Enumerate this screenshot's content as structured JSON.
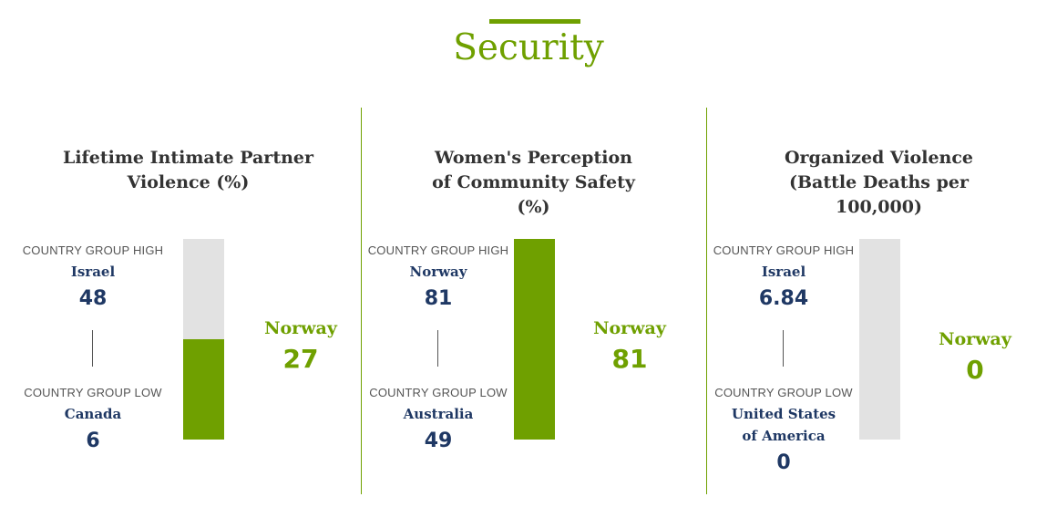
{
  "page": {
    "title": "Security",
    "accent_color": "#6fa000",
    "value_color": "#1f3864",
    "track_color": "#e2e2e2"
  },
  "chart_data": [
    {
      "type": "bar",
      "title": "Lifetime Intimate Partner Violence (%)",
      "high": {
        "label": "COUNTRY GROUP HIGH",
        "country": "Israel",
        "value": 48,
        "value_text": "48"
      },
      "low": {
        "label": "COUNTRY GROUP LOW",
        "country": "Canada",
        "value": 6,
        "value_text": "6"
      },
      "focus": {
        "country": "Norway",
        "value": 27,
        "value_text": "27"
      }
    },
    {
      "type": "bar",
      "title": "Women's Perception of Community Safety (%)",
      "high": {
        "label": "COUNTRY GROUP HIGH",
        "country": "Norway",
        "value": 81,
        "value_text": "81"
      },
      "low": {
        "label": "COUNTRY GROUP LOW",
        "country": "Australia",
        "value": 49,
        "value_text": "49"
      },
      "focus": {
        "country": "Norway",
        "value": 81,
        "value_text": "81"
      }
    },
    {
      "type": "bar",
      "title": "Organized Violence (Battle Deaths per 100,000)",
      "high": {
        "label": "COUNTRY GROUP HIGH",
        "country": "Israel",
        "value": 6.84,
        "value_text": "6.84"
      },
      "low": {
        "label": "COUNTRY GROUP LOW",
        "country": "United States of America",
        "value": 0,
        "value_text": "0"
      },
      "focus": {
        "country": "Norway",
        "value": 0,
        "value_text": "0"
      }
    }
  ]
}
